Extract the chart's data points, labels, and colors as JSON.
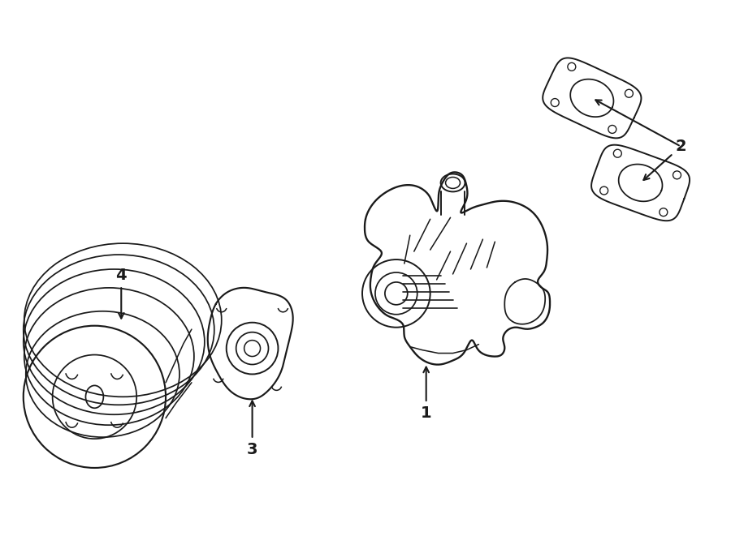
{
  "bg_color": "#ffffff",
  "line_color": "#1a1a1a",
  "line_width": 1.4,
  "fig_width": 9.0,
  "fig_height": 6.61,
  "dpi": 100
}
